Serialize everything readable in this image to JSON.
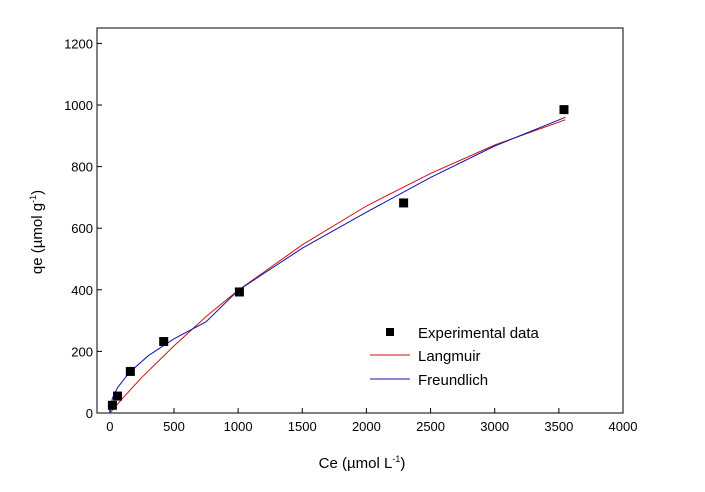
{
  "chart_data": {
    "type": "scatter",
    "xlabel": {
      "main": "Ce (",
      "greek": "µ",
      "unit": "mol L",
      "exp": "-1",
      "close": ")"
    },
    "ylabel": {
      "main": "qe (",
      "greek": "µ",
      "unit": "mol g",
      "exp": "-1",
      "close": ")"
    },
    "xlim": [
      -100,
      4000
    ],
    "ylim": [
      0,
      1250
    ],
    "xticks": [
      0,
      500,
      1000,
      1500,
      2000,
      2500,
      3000,
      3500,
      4000
    ],
    "yticks": [
      0,
      200,
      400,
      600,
      800,
      1000,
      1200
    ],
    "grid": false,
    "legend_position": "bottom-right",
    "series": [
      {
        "name": "Experimental data",
        "kind": "scatter",
        "marker": "square",
        "color": "#000000",
        "points": [
          {
            "x": 20,
            "y": 25
          },
          {
            "x": 60,
            "y": 55
          },
          {
            "x": 160,
            "y": 135
          },
          {
            "x": 420,
            "y": 232
          },
          {
            "x": 1010,
            "y": 393
          },
          {
            "x": 2290,
            "y": 682
          },
          {
            "x": 3540,
            "y": 985
          }
        ]
      },
      {
        "name": "Langmuir",
        "kind": "line",
        "color": "#d01010",
        "points": [
          {
            "x": 0,
            "y": 0
          },
          {
            "x": 100,
            "y": 48
          },
          {
            "x": 250,
            "y": 116
          },
          {
            "x": 500,
            "y": 218
          },
          {
            "x": 750,
            "y": 313
          },
          {
            "x": 1000,
            "y": 398
          },
          {
            "x": 1500,
            "y": 546
          },
          {
            "x": 2000,
            "y": 672
          },
          {
            "x": 2500,
            "y": 778
          },
          {
            "x": 3000,
            "y": 870
          },
          {
            "x": 3550,
            "y": 952
          }
        ]
      },
      {
        "name": "Freundlich",
        "kind": "line",
        "color": "#1010b0",
        "points": [
          {
            "x": 0,
            "y": 0
          },
          {
            "x": 20,
            "y": 48
          },
          {
            "x": 60,
            "y": 82
          },
          {
            "x": 150,
            "y": 131
          },
          {
            "x": 300,
            "y": 186
          },
          {
            "x": 500,
            "y": 241
          },
          {
            "x": 750,
            "y": 296
          },
          {
            "x": 1000,
            "y": 398
          },
          {
            "x": 1500,
            "y": 535
          },
          {
            "x": 2000,
            "y": 652
          },
          {
            "x": 2500,
            "y": 765
          },
          {
            "x": 3000,
            "y": 867
          },
          {
            "x": 3550,
            "y": 960
          }
        ]
      }
    ]
  }
}
